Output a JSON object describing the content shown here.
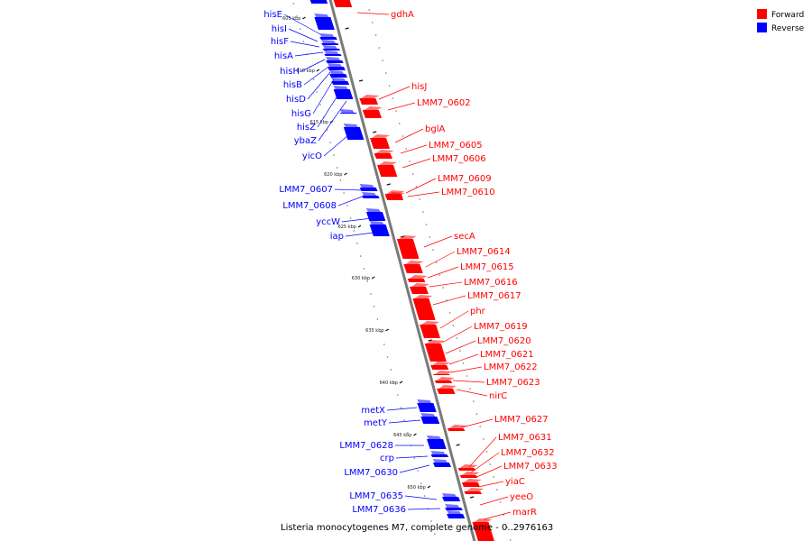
{
  "title": "Listeria monocytogenes M7, complete genome - 0..2976163",
  "legend": [
    {
      "label": "Forward",
      "color": "#ff0000"
    },
    {
      "label": "Reverse",
      "color": "#0000ff"
    }
  ],
  "axis_label_color": "#444444",
  "ticks": [
    "605 kbp",
    "610 kbp",
    "615 kbp",
    "620 kbp",
    "625 kbp",
    "630 kbp",
    "635 kbp",
    "640 kbp",
    "645 kbp",
    "650 kbp"
  ],
  "reverse_genes": [
    "hisE",
    "hisI",
    "hisF",
    "hisA",
    "hisH",
    "hisB",
    "hisD",
    "hisG",
    "hisZ",
    "ybaZ",
    "yicO",
    "LMM7_0607",
    "LMM7_0608",
    "yccW",
    "iap",
    "metX",
    "metY",
    "LMM7_0628",
    "crp",
    "LMM7_0630",
    "LMM7_0635",
    "LMM7_0636"
  ],
  "forward_genes": [
    "gdhA",
    "hisJ",
    "LMM7_0602",
    "bglA",
    "LMM7_0605",
    "LMM7_0606",
    "LMM7_0609",
    "LMM7_0610",
    "secA",
    "LMM7_0614",
    "LMM7_0615",
    "LMM7_0616",
    "LMM7_0617",
    "phr",
    "LMM7_0619",
    "LMM7_0620",
    "LMM7_0621",
    "LMM7_0622",
    "LMM7_0623",
    "nirC",
    "LMM7_0627",
    "LMM7_0631",
    "LMM7_0632",
    "LMM7_0633",
    "yiaC",
    "yeeO",
    "marR"
  ]
}
